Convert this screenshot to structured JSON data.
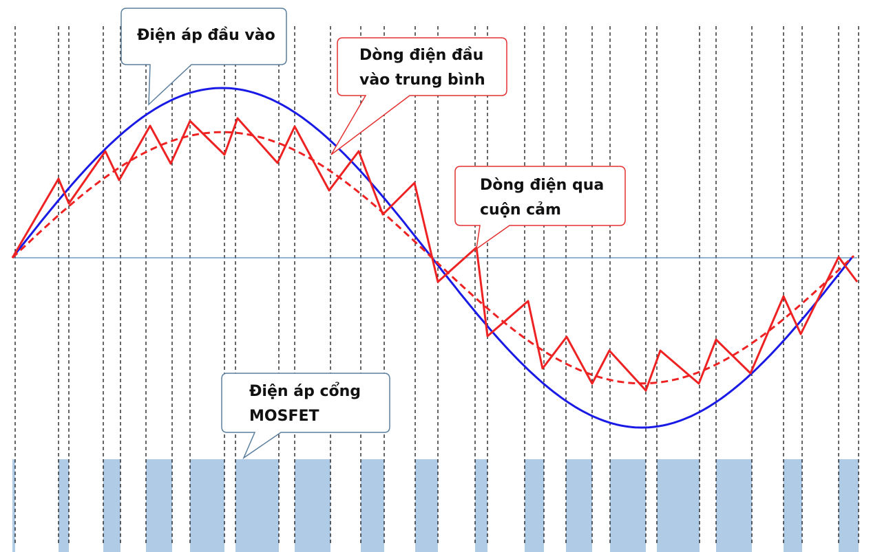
{
  "labels": {
    "input_voltage": "Điện áp đầu vào",
    "avg_current_line1": "Dòng điện đầu",
    "avg_current_line2": "vào trung bình",
    "inductor_current_line1": "Dòng điện qua",
    "inductor_current_line2": "cuộn cảm",
    "gate_voltage_line1": "Điện áp cổng",
    "gate_voltage_line2": "MOSFET"
  },
  "colors": {
    "input_voltage": "#1a1ae6",
    "inductor_current": "#ee2222",
    "avg_current": "#ee2222",
    "gate_pulse": "#b0cbe6",
    "axis": "#4f86b8",
    "grid": "#000000",
    "callout_blue_border": "#5b7f9e",
    "callout_red_border": "#e43030"
  },
  "signals": {
    "input_voltage_peak": 1.0,
    "avg_current_peak": 0.74,
    "phase_range": [
      0,
      6.2832
    ],
    "switching_periods": 17
  }
}
